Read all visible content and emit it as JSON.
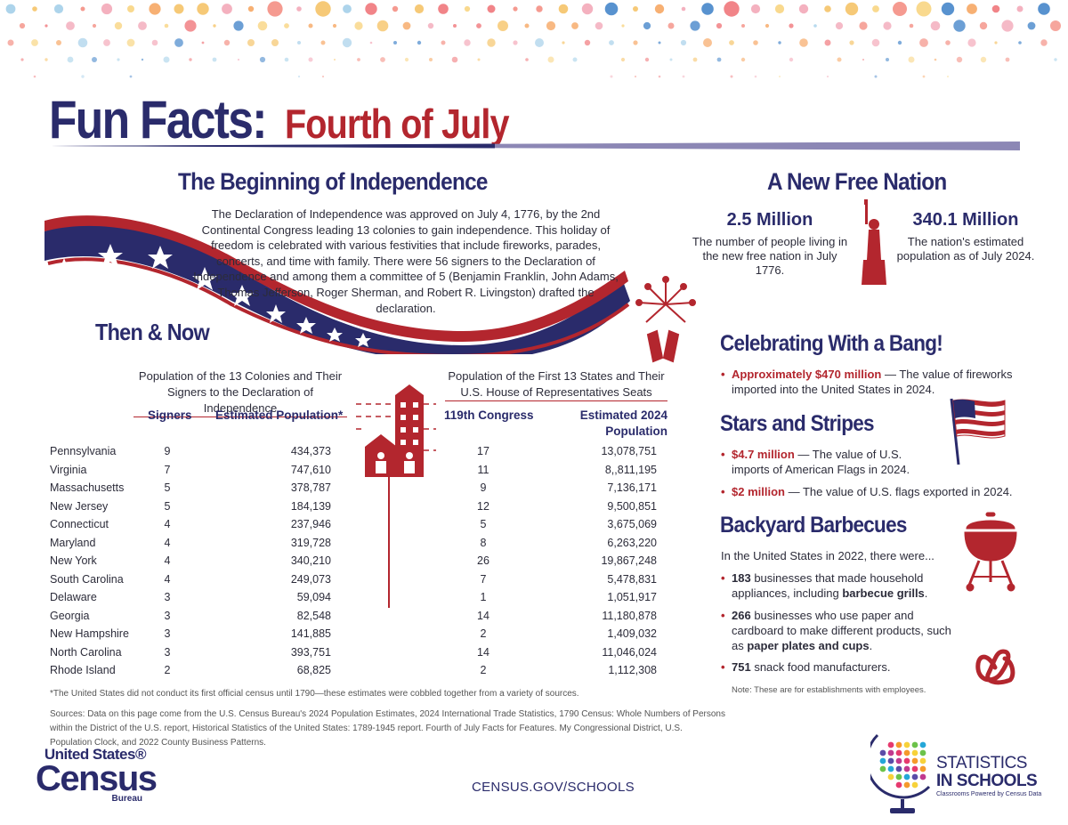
{
  "header": {
    "title_main": "Fun Facts:",
    "title_sub": "Fourth of July"
  },
  "independence": {
    "heading": "The Beginning of Independence",
    "body": "The Declaration of Independence was approved on July 4, 1776, by the 2nd Continental Congress leading 13 colonies to gain independence. This holiday of freedom is celebrated with various festivities that include fireworks, parades, concerts, and time with family. There were 56 signers to the Declaration of Independence and among them a committee of 5 (Benjamin Franklin, John Adams, Thomas Jefferson, Roger Sherman, and Robert R. Livingston) drafted the declaration."
  },
  "then_now": {
    "heading": "Then & Now",
    "left_caption_1": "Population of the 13 Colonies and Their",
    "left_caption_2": "Signers to the Declaration of Independence",
    "right_caption_1": "Population of the First 13 States and Their",
    "right_caption_2": "U.S. House of Representatives Seats",
    "col_signers": "Signers",
    "col_est_pop": "Estimated Population*",
    "col_congress": "119th Congress",
    "col_est_2024_1": "Estimated 2024",
    "col_est_2024_2": "Population",
    "rows": [
      {
        "state": "Pennsylvania",
        "signers": "9",
        "pop1790": "434,373",
        "seats": "17",
        "pop2024": "13,078,751"
      },
      {
        "state": "Virginia",
        "signers": "7",
        "pop1790": "747,610",
        "seats": "11",
        "pop2024": "8,,811,195"
      },
      {
        "state": "Massachusetts",
        "signers": "5",
        "pop1790": "378,787",
        "seats": "9",
        "pop2024": "7,136,171"
      },
      {
        "state": "New Jersey",
        "signers": "5",
        "pop1790": "184,139",
        "seats": "12",
        "pop2024": "9,500,851"
      },
      {
        "state": "Connecticut",
        "signers": "4",
        "pop1790": "237,946",
        "seats": "5",
        "pop2024": "3,675,069"
      },
      {
        "state": "Maryland",
        "signers": "4",
        "pop1790": "319,728",
        "seats": "8",
        "pop2024": "6,263,220"
      },
      {
        "state": "New York",
        "signers": "4",
        "pop1790": "340,210",
        "seats": "26",
        "pop2024": "19,867,248"
      },
      {
        "state": "South Carolina",
        "signers": "4",
        "pop1790": "249,073",
        "seats": "7",
        "pop2024": "5,478,831"
      },
      {
        "state": "Delaware",
        "signers": "3",
        "pop1790": "59,094",
        "seats": "1",
        "pop2024": "1,051,917"
      },
      {
        "state": "Georgia",
        "signers": "3",
        "pop1790": "82,548",
        "seats": "14",
        "pop2024": "11,180,878"
      },
      {
        "state": "New Hampshire",
        "signers": "3",
        "pop1790": "141,885",
        "seats": "2",
        "pop2024": "1,409,032"
      },
      {
        "state": "North Carolina",
        "signers": "3",
        "pop1790": "393,751",
        "seats": "14",
        "pop2024": "11,046,024"
      },
      {
        "state": "Rhode Island",
        "signers": "2",
        "pop1790": "68,825",
        "seats": "2",
        "pop2024": "1,112,308"
      }
    ],
    "footnote": "*The United States did not conduct its first official census until 1790—these estimates were cobbled together from a variety of sources."
  },
  "sources": "Sources: Data on this page come from the U.S. Census Bureau's 2024 Population Estimates, 2024 International Trade Statistics, 1790 Census: Whole Numbers of Persons within the District of the U.S. report, Historical Statistics of the United States: 1789-1945 report. Fourth of July Facts for Features. My Congressional District, U.S. Population Clock, and 2022 County Business Patterns.",
  "new_nation": {
    "heading": "A New Free Nation",
    "stat1_value": "2.5 Million",
    "stat1_desc": "The number of people living in the new free nation in July 1776.",
    "stat2_value": "340.1 Million",
    "stat2_desc": "The nation's estimated population as of July 2024."
  },
  "celebrating": {
    "heading": "Celebrating With a Bang!",
    "b1_strong": "Approximately $470 million",
    "b1_text": " — The value of fireworks imported into the United States in 2024."
  },
  "stars_stripes": {
    "heading": "Stars and Stripes",
    "b1_strong": "$4.7 million",
    "b1_text": " — The value of U.S. imports of American Flags in 2024.",
    "b2_strong": "$2 million",
    "b2_text": " — The value of U.S. flags exported in 2024."
  },
  "barbecues": {
    "heading": "Backyard Barbecues",
    "intro": "In the United States in 2022, there were...",
    "b1_num": "183",
    "b1_text": " businesses that made household appliances, including ",
    "b1_bold": "barbecue grills",
    "b1_end": ".",
    "b2_num": "266",
    "b2_text": " businesses who use paper and cardboard to make different products, such as ",
    "b2_bold": "paper plates and cups",
    "b2_end": ".",
    "b3_num": "751",
    "b3_text": " snack food manufacturers.",
    "note": "Note: These are for establishments with employees."
  },
  "footer": {
    "census_line1": "United States®",
    "census_line2": "Census",
    "census_line3": "Bureau",
    "link": "CENSUS.GOV/SCHOOLS",
    "sis_line1": "STATISTICS",
    "sis_line2": "IN SCHOOLS",
    "sis_tagline": "Classrooms Powered by Census Data"
  },
  "colors": {
    "navy": "#2a2b6b",
    "red": "#b3262e"
  }
}
